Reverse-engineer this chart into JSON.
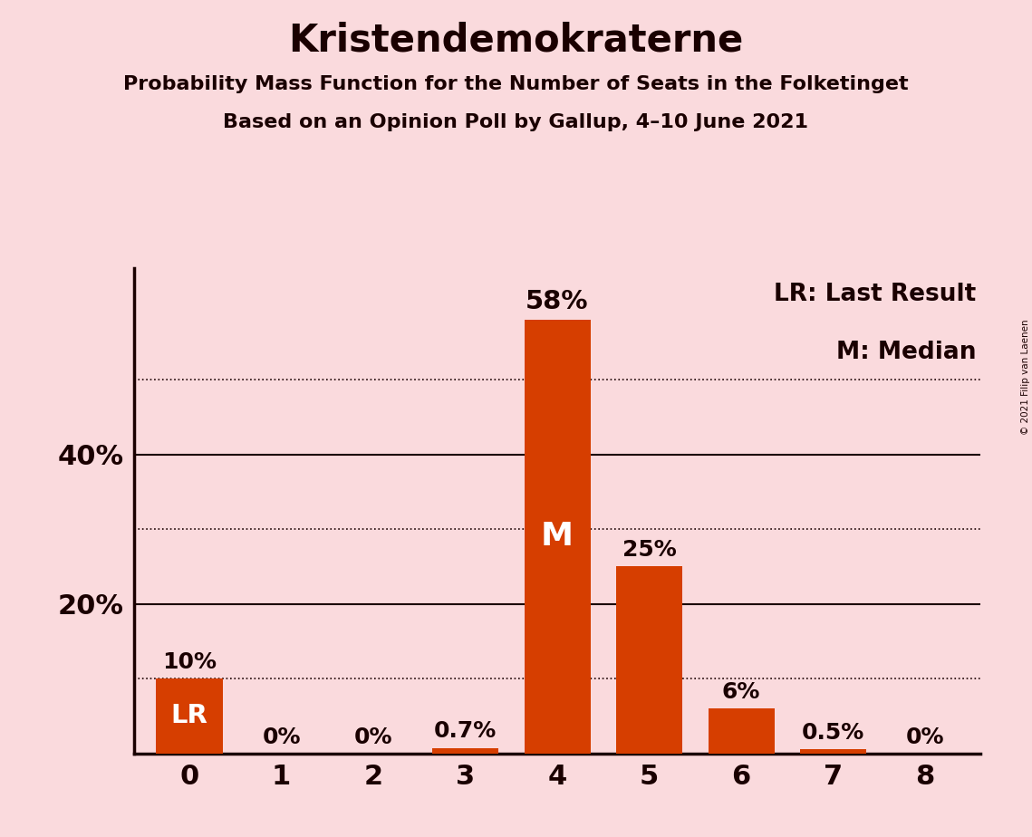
{
  "title": "Kristendemokraterne",
  "subtitle1": "Probability Mass Function for the Number of Seats in the Folketinget",
  "subtitle2": "Based on an Opinion Poll by Gallup, 4–10 June 2021",
  "copyright": "© 2021 Filip van Laenen",
  "categories": [
    0,
    1,
    2,
    3,
    4,
    5,
    6,
    7,
    8
  ],
  "values": [
    10.0,
    0.0,
    0.0,
    0.7,
    58.0,
    25.0,
    6.0,
    0.5,
    0.0
  ],
  "labels": [
    "10%",
    "0%",
    "0%",
    "0.7%",
    "58%",
    "25%",
    "6%",
    "0.5%",
    "0%"
  ],
  "bar_color": "#d63e00",
  "background_color": "#fadadd",
  "text_color": "#1a0000",
  "median_bar": 4,
  "lr_bar": 0,
  "legend_lr": "LR: Last Result",
  "legend_m": "M: Median",
  "ylim_max": 65,
  "solid_gridlines": [
    20,
    40
  ],
  "dotted_gridlines": [
    10,
    30,
    50
  ],
  "title_fontsize": 30,
  "subtitle_fontsize": 16,
  "label_fontsize": 18,
  "axis_tick_fontsize": 22
}
